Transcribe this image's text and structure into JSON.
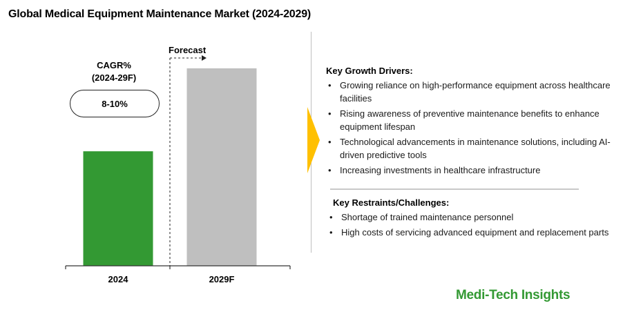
{
  "title": "Global Medical Equipment Maintenance Market (2024-2029)",
  "cagr": {
    "label": "CAGR%\n(2024-29F)",
    "line1": "CAGR%",
    "line2": "(2024-29F)",
    "value": "8-10%"
  },
  "forecast_label": "Forecast",
  "drivers": {
    "heading": "Key Growth Drivers:",
    "items": [
      "Growing reliance on high-performance equipment across healthcare facilities",
      "Rising awareness of preventive maintenance benefits to enhance equipment lifespan",
      "Technological advancements in maintenance solutions, including AI-driven predictive tools",
      "Increasing investments in healthcare infrastructure"
    ]
  },
  "restraints": {
    "heading": "Key Restraints/Challenges:",
    "items": [
      "Shortage of trained maintenance personnel",
      "High costs of servicing advanced equipment and replacement parts"
    ]
  },
  "brand": "Medi-Tech Insights",
  "chart_data": {
    "type": "bar",
    "categories": [
      "2024",
      "2029F"
    ],
    "values": [
      58,
      100
    ],
    "ylim": [
      0,
      100
    ],
    "colors": [
      "#339933",
      "#bfbfbf"
    ],
    "grid": false
  }
}
